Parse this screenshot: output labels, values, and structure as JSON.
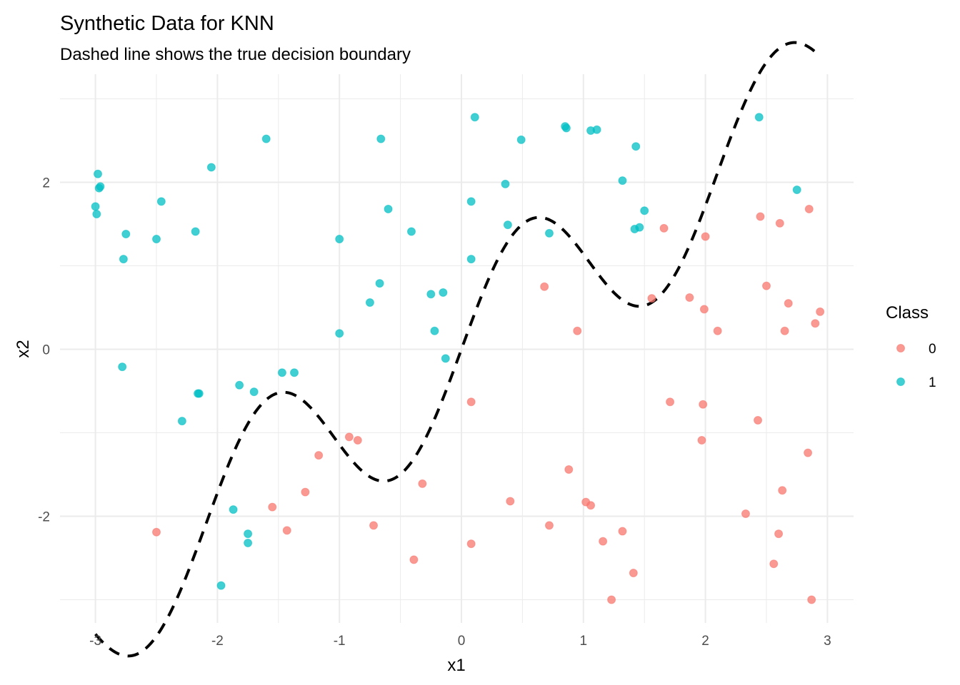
{
  "chart_data": {
    "type": "scatter",
    "title": "Synthetic Data for KNN",
    "subtitle": "Dashed line shows the true decision boundary",
    "xlabel": "x1",
    "ylabel": "x2",
    "xlim": [
      -3.2,
      3.2
    ],
    "ylim": [
      -3.2,
      3.2
    ],
    "x_ticks": [
      -3,
      -2,
      -1,
      0,
      1,
      2,
      3
    ],
    "y_ticks": [
      -2,
      0,
      2
    ],
    "x_tick_labels": [
      "-3",
      "-2",
      "-1",
      "0",
      "1",
      "2",
      "3"
    ],
    "y_tick_labels": [
      "-2",
      "0",
      "2"
    ],
    "grid": true,
    "legend": {
      "title": "Class",
      "position": "right",
      "entries": [
        {
          "label": "0",
          "color": "#F8766D"
        },
        {
          "label": "1",
          "color": "#00BFC4"
        }
      ]
    },
    "series": [
      {
        "name": "0",
        "color": "#F8766D",
        "points": [
          [
            -2.5,
            -2.19
          ],
          [
            -1.55,
            -1.89
          ],
          [
            -1.43,
            -2.17
          ],
          [
            -1.28,
            -1.71
          ],
          [
            -1.17,
            -1.27
          ],
          [
            -0.92,
            -1.05
          ],
          [
            -0.85,
            -1.09
          ],
          [
            -0.72,
            -2.11
          ],
          [
            -0.39,
            -2.52
          ],
          [
            -0.32,
            -1.61
          ],
          [
            0.08,
            -0.63
          ],
          [
            0.08,
            -2.33
          ],
          [
            0.4,
            -1.82
          ],
          [
            0.68,
            0.75
          ],
          [
            0.72,
            -2.11
          ],
          [
            0.88,
            -1.44
          ],
          [
            0.95,
            0.22
          ],
          [
            1.02,
            -1.83
          ],
          [
            1.06,
            -1.87
          ],
          [
            1.16,
            -2.3
          ],
          [
            1.23,
            -3.0
          ],
          [
            1.32,
            -2.18
          ],
          [
            1.41,
            -2.68
          ],
          [
            1.56,
            0.61
          ],
          [
            1.66,
            1.45
          ],
          [
            1.71,
            -0.63
          ],
          [
            1.87,
            0.62
          ],
          [
            1.97,
            -1.09
          ],
          [
            1.98,
            -0.66
          ],
          [
            1.99,
            0.48
          ],
          [
            2.0,
            1.35
          ],
          [
            2.1,
            0.22
          ],
          [
            2.33,
            -1.97
          ],
          [
            2.43,
            -0.85
          ],
          [
            2.45,
            1.59
          ],
          [
            2.5,
            0.76
          ],
          [
            2.56,
            -2.57
          ],
          [
            2.6,
            -2.21
          ],
          [
            2.61,
            1.51
          ],
          [
            2.63,
            -1.69
          ],
          [
            2.65,
            0.22
          ],
          [
            2.68,
            0.55
          ],
          [
            2.84,
            -1.24
          ],
          [
            2.85,
            1.68
          ],
          [
            2.87,
            -3.0
          ],
          [
            2.9,
            0.31
          ],
          [
            2.94,
            0.45
          ]
        ]
      },
      {
        "name": "1",
        "color": "#00BFC4",
        "points": [
          [
            -3.0,
            1.71
          ],
          [
            -2.99,
            1.62
          ],
          [
            -2.98,
            2.1
          ],
          [
            -2.97,
            1.93
          ],
          [
            -2.96,
            1.95
          ],
          [
            -2.78,
            -0.21
          ],
          [
            -2.77,
            1.08
          ],
          [
            -2.75,
            1.38
          ],
          [
            -2.5,
            1.32
          ],
          [
            -2.46,
            1.77
          ],
          [
            -2.29,
            -0.86
          ],
          [
            -2.18,
            1.41
          ],
          [
            -2.16,
            -0.53
          ],
          [
            -2.15,
            -0.53
          ],
          [
            -2.05,
            2.18
          ],
          [
            -1.97,
            -2.83
          ],
          [
            -1.87,
            -1.92
          ],
          [
            -1.82,
            -0.43
          ],
          [
            -1.75,
            -2.32
          ],
          [
            -1.75,
            -2.21
          ],
          [
            -1.7,
            -0.51
          ],
          [
            -1.6,
            2.52
          ],
          [
            -1.47,
            -0.28
          ],
          [
            -1.37,
            -0.28
          ],
          [
            -1.0,
            1.32
          ],
          [
            -1.0,
            0.19
          ],
          [
            -0.75,
            0.56
          ],
          [
            -0.67,
            0.79
          ],
          [
            -0.66,
            2.52
          ],
          [
            -0.6,
            1.68
          ],
          [
            -0.41,
            1.41
          ],
          [
            -0.25,
            0.66
          ],
          [
            -0.22,
            0.22
          ],
          [
            -0.15,
            0.68
          ],
          [
            -0.13,
            -0.11
          ],
          [
            0.08,
            1.77
          ],
          [
            0.08,
            1.08
          ],
          [
            0.11,
            2.78
          ],
          [
            0.36,
            1.98
          ],
          [
            0.38,
            1.49
          ],
          [
            0.49,
            2.51
          ],
          [
            0.72,
            1.39
          ],
          [
            0.85,
            2.67
          ],
          [
            0.86,
            2.65
          ],
          [
            1.06,
            2.62
          ],
          [
            1.11,
            2.63
          ],
          [
            1.32,
            2.02
          ],
          [
            1.42,
            1.44
          ],
          [
            1.43,
            2.43
          ],
          [
            1.46,
            1.46
          ],
          [
            1.5,
            1.66
          ],
          [
            2.44,
            2.78
          ],
          [
            2.75,
            1.91
          ]
        ]
      }
    ],
    "boundary": {
      "style": "dashed",
      "color": "#000000",
      "formula": "x2 = sin(3*x1) + x1",
      "x_range": [
        -3,
        2.9
      ]
    }
  }
}
